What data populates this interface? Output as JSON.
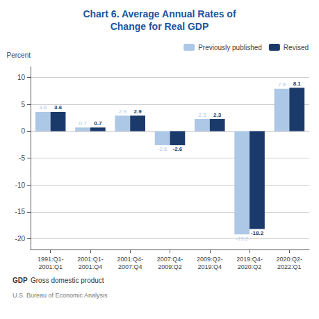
{
  "chart_data": {
    "type": "bar",
    "title": "Chart 6. Average Annual Rates of\nChange for Real GDP",
    "title_color": "#1E56A0",
    "ylabel": "Percent",
    "categories": [
      "1991:Q1-\n2001:Q1",
      "2001:Q1-\n2001:Q4",
      "2001:Q4-\n2007:Q4",
      "2007:Q4-\n2009:Q2",
      "2009:Q2-\n2019:Q4",
      "2019:Q4-\n2020:Q2",
      "2020:Q2-\n2022:Q1"
    ],
    "series": [
      {
        "name": "Previously published",
        "color": "#ADC8E6",
        "values": [
          3.6,
          0.7,
          2.9,
          -2.6,
          2.3,
          -19.2,
          7.9
        ]
      },
      {
        "name": "Revised",
        "color": "#1A3A6B",
        "values": [
          3.6,
          0.7,
          2.9,
          -2.6,
          2.3,
          -18.2,
          8.1
        ]
      }
    ],
    "ylim": [
      -22,
      12
    ],
    "yticks": [
      -20,
      -15,
      -10,
      -5,
      0,
      5,
      10
    ],
    "grid": true,
    "legend": "upper right",
    "data_labels": true,
    "annotations": [
      "GDP",
      "Gross domestic product",
      "U.S. Bureau of Economic Analysis"
    ]
  }
}
